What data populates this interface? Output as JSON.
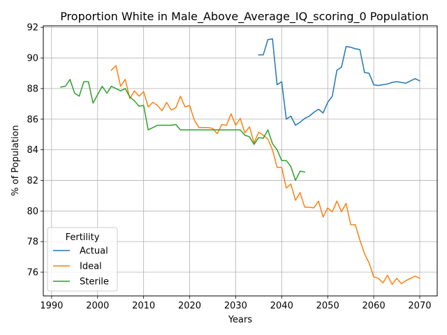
{
  "chart_data": {
    "type": "line",
    "title": "Proportion White in Male_Above_Average_IQ_scoring_0 Population",
    "xlabel": "Years",
    "ylabel": "% of Population",
    "xlim": [
      1988.2,
      2073.8
    ],
    "ylim": [
      74.45,
      92.1
    ],
    "xticks": [
      1990,
      2000,
      2010,
      2020,
      2030,
      2040,
      2050,
      2060,
      2070
    ],
    "yticks": [
      76,
      78,
      80,
      82,
      84,
      86,
      88,
      90,
      92
    ],
    "grid": true,
    "legend": {
      "title": "Fertility",
      "placement": "lower-left"
    },
    "series": [
      {
        "name": "Actual",
        "color": "#1f77b4",
        "points": [
          [
            2035,
            90.2
          ],
          [
            2036,
            90.2
          ],
          [
            2037,
            91.2
          ],
          [
            2038,
            91.25
          ],
          [
            2039,
            88.25
          ],
          [
            2040,
            88.45
          ],
          [
            2041,
            86.0
          ],
          [
            2042,
            86.2
          ],
          [
            2043,
            85.6
          ],
          [
            2044,
            85.8
          ],
          [
            2045,
            86.05
          ],
          [
            2046,
            86.2
          ],
          [
            2047,
            86.45
          ],
          [
            2048,
            86.65
          ],
          [
            2049,
            86.4
          ],
          [
            2050,
            87.1
          ],
          [
            2051,
            87.5
          ],
          [
            2052,
            89.2
          ],
          [
            2053,
            89.4
          ],
          [
            2054,
            90.75
          ],
          [
            2055,
            90.7
          ],
          [
            2056,
            90.6
          ],
          [
            2057,
            90.55
          ],
          [
            2058,
            89.05
          ],
          [
            2059,
            89.0
          ],
          [
            2060,
            88.25
          ],
          [
            2061,
            88.2
          ],
          [
            2062,
            88.25
          ],
          [
            2063,
            88.3
          ],
          [
            2064,
            88.4
          ],
          [
            2065,
            88.45
          ],
          [
            2066,
            88.4
          ],
          [
            2067,
            88.35
          ],
          [
            2068,
            88.5
          ],
          [
            2069,
            88.65
          ],
          [
            2070,
            88.5
          ]
        ]
      },
      {
        "name": "Ideal",
        "color": "#ff7f0e",
        "points": [
          [
            2003,
            89.2
          ],
          [
            2004,
            89.5
          ],
          [
            2005,
            88.15
          ],
          [
            2006,
            88.6
          ],
          [
            2007,
            87.35
          ],
          [
            2008,
            87.85
          ],
          [
            2009,
            87.5
          ],
          [
            2010,
            87.8
          ],
          [
            2011,
            86.8
          ],
          [
            2012,
            87.1
          ],
          [
            2013,
            86.9
          ],
          [
            2014,
            86.55
          ],
          [
            2015,
            87.1
          ],
          [
            2016,
            86.6
          ],
          [
            2017,
            86.75
          ],
          [
            2018,
            87.5
          ],
          [
            2019,
            86.8
          ],
          [
            2020,
            86.9
          ],
          [
            2021,
            85.95
          ],
          [
            2022,
            85.45
          ],
          [
            2023,
            85.45
          ],
          [
            2024,
            85.45
          ],
          [
            2025,
            85.4
          ],
          [
            2026,
            85.05
          ],
          [
            2027,
            85.65
          ],
          [
            2028,
            85.6
          ],
          [
            2029,
            86.35
          ],
          [
            2030,
            85.6
          ],
          [
            2031,
            86.05
          ],
          [
            2032,
            85.1
          ],
          [
            2033,
            85.5
          ],
          [
            2034,
            84.45
          ],
          [
            2035,
            85.15
          ],
          [
            2036,
            84.95
          ],
          [
            2037,
            84.7
          ],
          [
            2038,
            84.0
          ],
          [
            2039,
            82.85
          ],
          [
            2040,
            82.85
          ],
          [
            2041,
            81.5
          ],
          [
            2042,
            81.75
          ],
          [
            2043,
            80.7
          ],
          [
            2044,
            81.2
          ],
          [
            2045,
            80.25
          ],
          [
            2046,
            80.25
          ],
          [
            2047,
            80.2
          ],
          [
            2048,
            80.65
          ],
          [
            2049,
            79.6
          ],
          [
            2050,
            80.2
          ],
          [
            2051,
            79.95
          ],
          [
            2052,
            80.65
          ],
          [
            2053,
            79.95
          ],
          [
            2054,
            80.5
          ],
          [
            2055,
            79.1
          ],
          [
            2056,
            79.1
          ],
          [
            2057,
            78.1
          ],
          [
            2058,
            77.2
          ],
          [
            2059,
            76.6
          ],
          [
            2060,
            75.7
          ],
          [
            2061,
            75.6
          ],
          [
            2062,
            75.3
          ],
          [
            2063,
            75.8
          ],
          [
            2064,
            75.2
          ],
          [
            2065,
            75.6
          ],
          [
            2066,
            75.25
          ],
          [
            2067,
            75.45
          ],
          [
            2068,
            75.6
          ],
          [
            2069,
            75.75
          ],
          [
            2070,
            75.6
          ]
        ]
      },
      {
        "name": "Sterile",
        "color": "#2ca02c",
        "points": [
          [
            1992,
            88.1
          ],
          [
            1993,
            88.15
          ],
          [
            1994,
            88.6
          ],
          [
            1995,
            87.7
          ],
          [
            1996,
            87.5
          ],
          [
            1997,
            88.45
          ],
          [
            1998,
            88.45
          ],
          [
            1999,
            87.05
          ],
          [
            2000,
            87.6
          ],
          [
            2001,
            88.15
          ],
          [
            2002,
            87.7
          ],
          [
            2003,
            88.15
          ],
          [
            2004,
            88.0
          ],
          [
            2005,
            87.85
          ],
          [
            2006,
            88.0
          ],
          [
            2007,
            87.45
          ],
          [
            2008,
            87.2
          ],
          [
            2009,
            86.85
          ],
          [
            2010,
            86.9
          ],
          [
            2011,
            85.3
          ],
          [
            2012,
            85.45
          ],
          [
            2013,
            85.6
          ],
          [
            2014,
            85.6
          ],
          [
            2015,
            85.6
          ],
          [
            2016,
            85.6
          ],
          [
            2017,
            85.65
          ],
          [
            2018,
            85.3
          ],
          [
            2019,
            85.3
          ],
          [
            2020,
            85.3
          ],
          [
            2021,
            85.3
          ],
          [
            2022,
            85.3
          ],
          [
            2023,
            85.3
          ],
          [
            2024,
            85.3
          ],
          [
            2025,
            85.3
          ],
          [
            2026,
            85.3
          ],
          [
            2027,
            85.3
          ],
          [
            2028,
            85.3
          ],
          [
            2029,
            85.3
          ],
          [
            2030,
            85.3
          ],
          [
            2031,
            85.3
          ],
          [
            2032,
            84.95
          ],
          [
            2033,
            84.85
          ],
          [
            2034,
            84.35
          ],
          [
            2035,
            84.8
          ],
          [
            2036,
            84.75
          ],
          [
            2037,
            85.3
          ],
          [
            2038,
            84.4
          ],
          [
            2039,
            84.0
          ],
          [
            2040,
            83.3
          ],
          [
            2041,
            83.3
          ],
          [
            2042,
            82.9
          ],
          [
            2043,
            82.0
          ],
          [
            2044,
            82.6
          ],
          [
            2045,
            82.55
          ]
        ]
      }
    ]
  }
}
